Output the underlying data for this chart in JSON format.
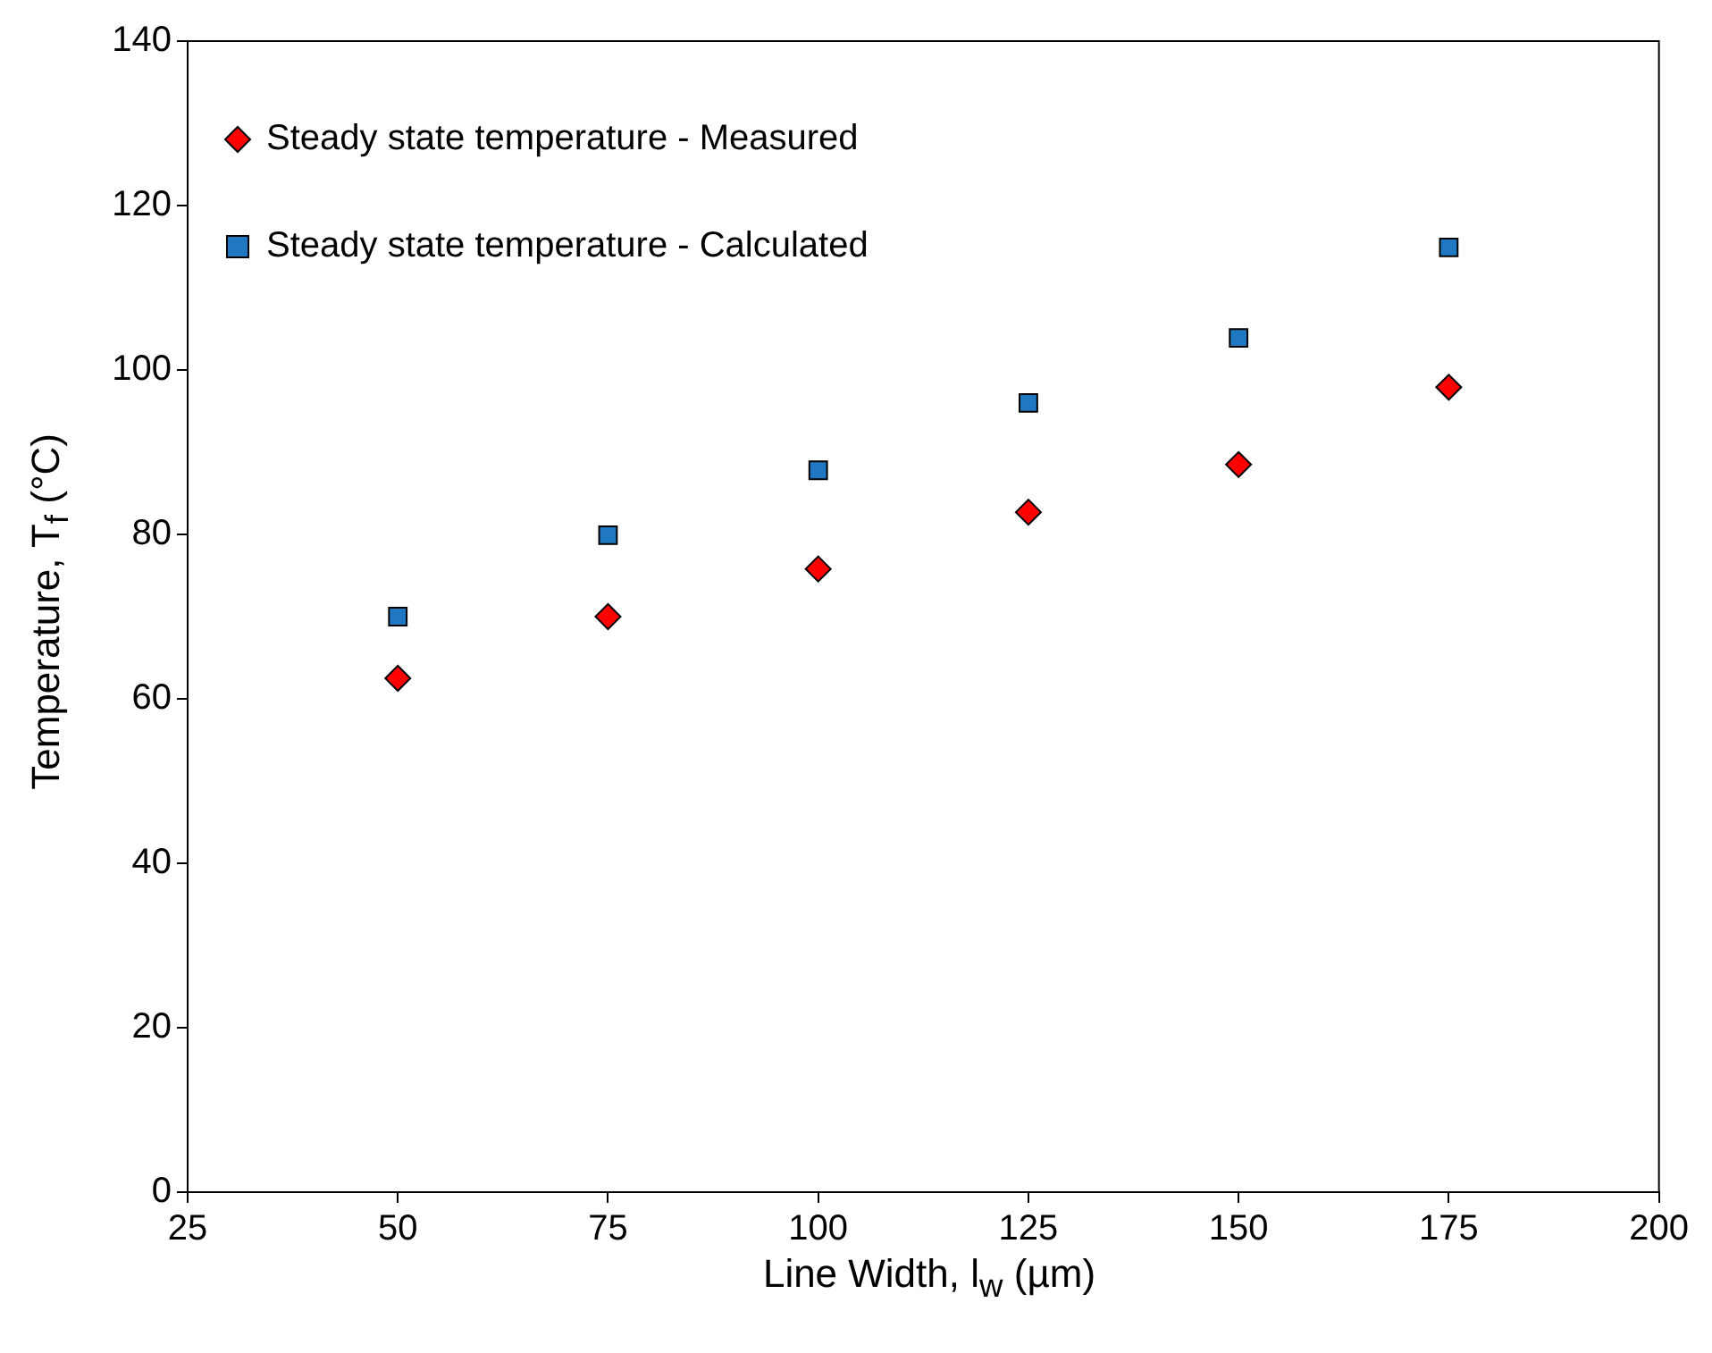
{
  "chart_data": {
    "type": "scatter",
    "xlabel": "Line Width, l$_{w}$ (µm)",
    "ylabel": "Temperature, T$_{f}$ (°C)",
    "x": [
      50,
      75,
      100,
      125,
      150,
      175
    ],
    "series": [
      {
        "name": "Steady state temperature - Measured",
        "color": "#ff0000",
        "marker": "diamond",
        "values": [
          62.5,
          70,
          75.8,
          82.7,
          88.5,
          97.9
        ]
      },
      {
        "name": "Steady state temperature - Calculated",
        "color": "#1f78c1",
        "marker": "square",
        "values": [
          70,
          79.9,
          87.8,
          96,
          103.9,
          114.9
        ]
      }
    ],
    "xlim": [
      25,
      200
    ],
    "xticks": [
      25,
      50,
      75,
      100,
      125,
      150,
      175,
      200
    ],
    "ylim": [
      0,
      140
    ],
    "yticks": [
      0,
      20,
      40,
      60,
      80,
      100,
      120,
      140
    ],
    "grid": false,
    "legend": "top left"
  }
}
